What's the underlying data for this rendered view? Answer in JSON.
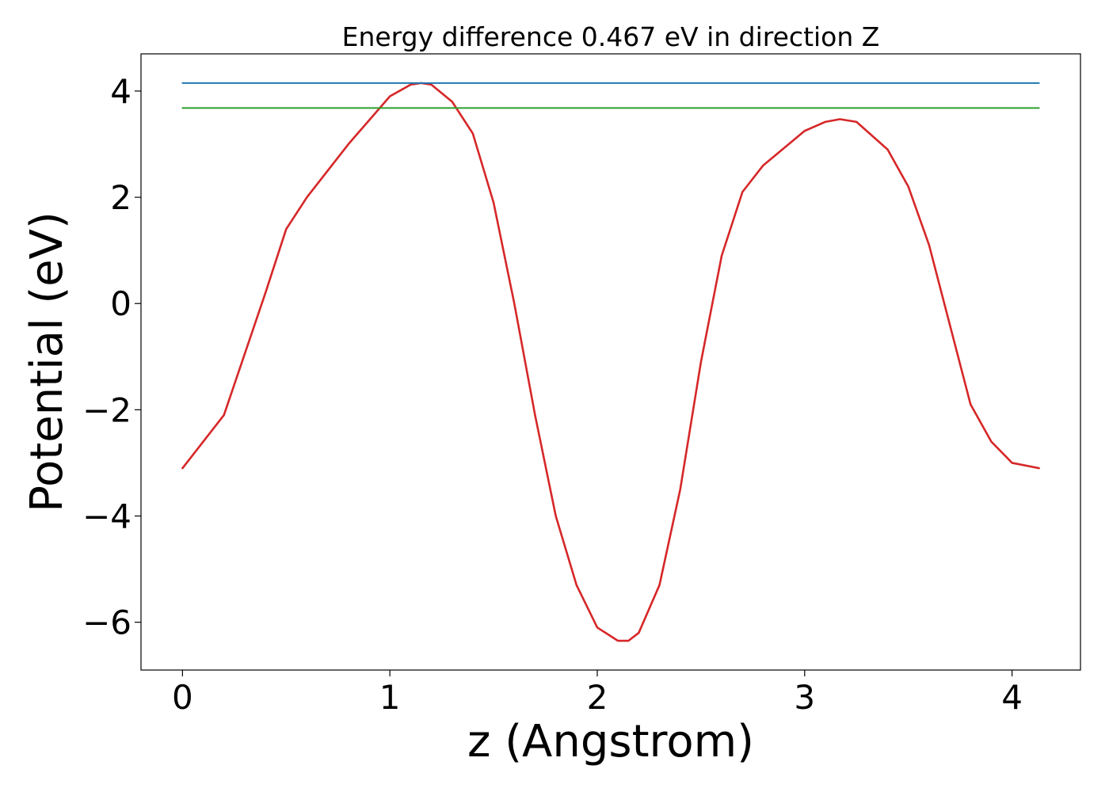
{
  "chart_data": {
    "type": "line",
    "title": "Energy difference 0.467 eV in direction Z",
    "xlabel": "z (Angstrom)",
    "ylabel": "Potential (eV)",
    "xlim": [
      -0.2,
      4.33
    ],
    "ylim": [
      -6.9,
      4.7
    ],
    "xticks": [
      0,
      1,
      2,
      3,
      4
    ],
    "xtick_labels": [
      "0",
      "1",
      "2",
      "3",
      "4"
    ],
    "yticks": [
      4,
      2,
      0,
      -2,
      -4,
      -6
    ],
    "ytick_labels": [
      "4",
      "2",
      "0",
      "−2",
      "−4",
      "−6"
    ],
    "grid": false,
    "legend": "none",
    "series": [
      {
        "color": "#d62728",
        "style": "line",
        "x": [
          0,
          0.2,
          0.4,
          0.5,
          0.6,
          0.8,
          1.0,
          1.1,
          1.15,
          1.2,
          1.3,
          1.4,
          1.5,
          1.6,
          1.7,
          1.8,
          1.9,
          2.0,
          2.1,
          2.15,
          2.2,
          2.3,
          2.4,
          2.5,
          2.6,
          2.7,
          2.8,
          3.0,
          3.1,
          3.17,
          3.25,
          3.4,
          3.5,
          3.6,
          3.7,
          3.8,
          3.9,
          4.0,
          4.13
        ],
        "y": [
          -3.1,
          -2.1,
          0.2,
          1.4,
          2.0,
          3.0,
          3.9,
          4.12,
          4.15,
          4.12,
          3.8,
          3.2,
          1.9,
          0.0,
          -2.1,
          -4.0,
          -5.3,
          -6.1,
          -6.35,
          -6.35,
          -6.2,
          -5.3,
          -3.5,
          -1.1,
          0.9,
          2.1,
          2.6,
          3.25,
          3.42,
          3.47,
          3.42,
          2.9,
          2.2,
          1.1,
          -0.4,
          -1.9,
          -2.6,
          -3.0,
          -3.1
        ]
      },
      {
        "color": "#1f77b4",
        "style": "hline",
        "x": [
          0,
          4.13
        ],
        "y": [
          4.15,
          4.15
        ]
      },
      {
        "color": "#2ca02c",
        "style": "hline",
        "x": [
          0,
          4.13
        ],
        "y": [
          3.68,
          3.68
        ]
      }
    ]
  }
}
